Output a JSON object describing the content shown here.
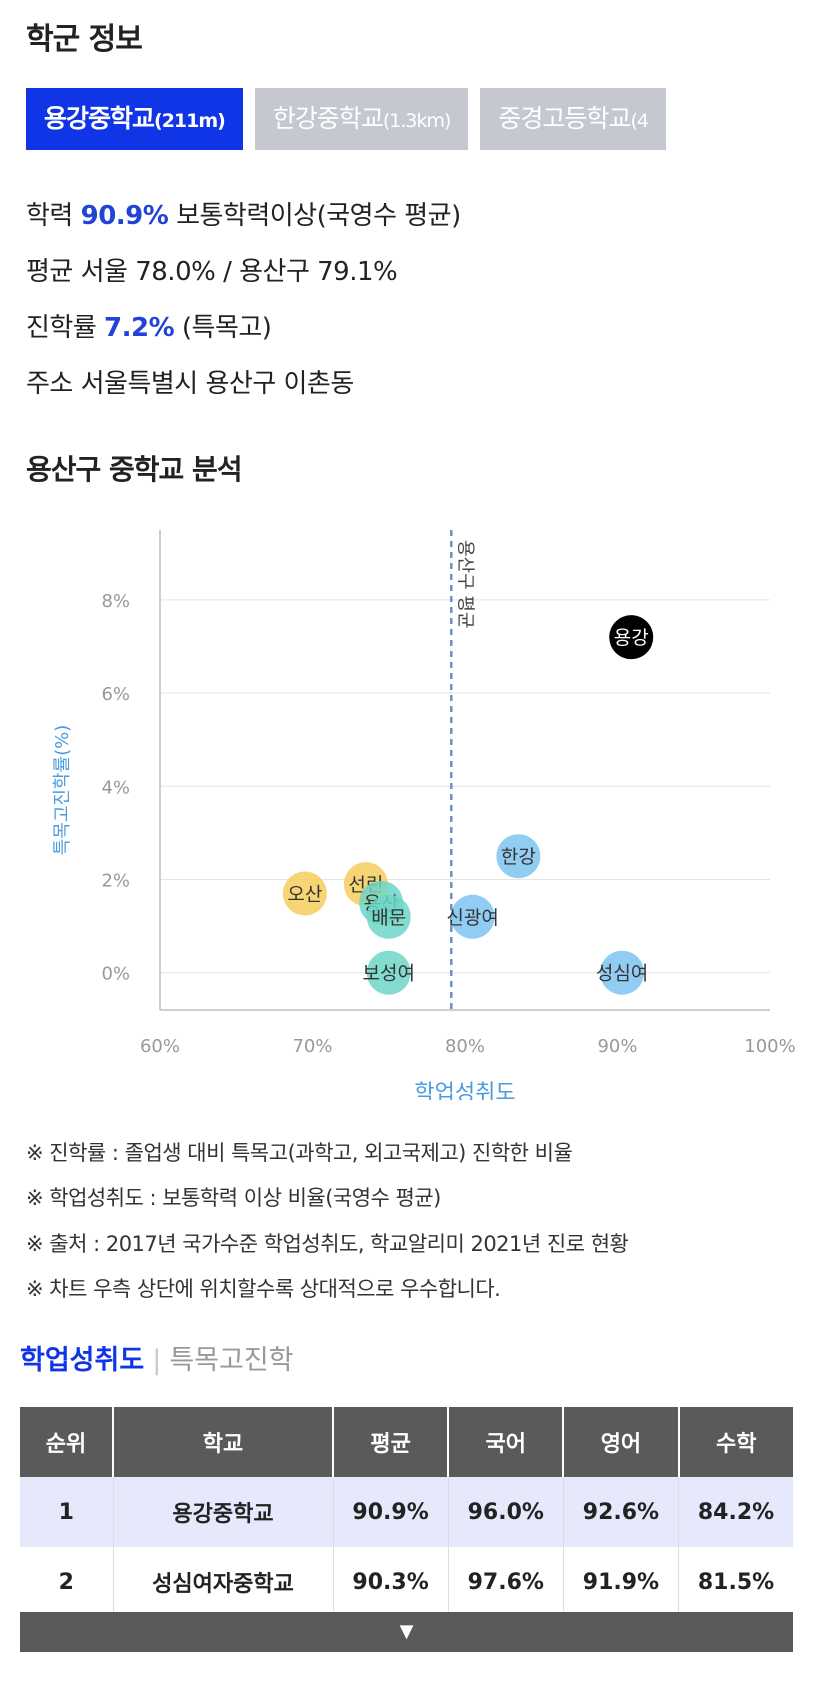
{
  "header": {
    "title": "학군 정보"
  },
  "tabs": [
    {
      "name": "용강중학교",
      "dist": "(211m)"
    },
    {
      "name": "한강중학교",
      "dist": "(1.3km)"
    },
    {
      "name": "중경고등학교",
      "dist": "(4"
    }
  ],
  "info": {
    "academic_label": "학력",
    "academic_value": "90.9%",
    "academic_desc": "보통학력이상(국영수 평균)",
    "avg_label": "평균",
    "avg_value": "서울 78.0% / 용산구 79.1%",
    "adv_label": "진학률",
    "adv_value": "7.2%",
    "adv_desc": "(특목고)",
    "addr_label": "주소",
    "addr_value": "서울특별시 용산구 이촌동"
  },
  "analysis": {
    "title": "용산구 중학교 분석"
  },
  "chart_data": {
    "type": "scatter",
    "xlabel": "학업성취도",
    "ylabel": "특목고진학률(%)",
    "xlim": [
      60,
      100
    ],
    "ylim": [
      -0.8,
      9.5
    ],
    "xticks": [
      "60%",
      "70%",
      "80%",
      "90%",
      "100%"
    ],
    "yticks": [
      "0%",
      "2%",
      "4%",
      "6%",
      "8%"
    ],
    "ref_line": {
      "x": 79.1,
      "label": "용산구 평균"
    },
    "points": [
      {
        "label": "용강",
        "x": 90.9,
        "y": 7.2,
        "color": "#000000"
      },
      {
        "label": "한강",
        "x": 83.5,
        "y": 2.5,
        "color": "#7ec3f0"
      },
      {
        "label": "신광여",
        "x": 80.5,
        "y": 1.2,
        "color": "#7ec3f0"
      },
      {
        "label": "성심여",
        "x": 90.3,
        "y": 0.0,
        "color": "#7ec3f0"
      },
      {
        "label": "오산",
        "x": 69.5,
        "y": 1.7,
        "color": "#f6cc5c"
      },
      {
        "label": "선린",
        "x": 73.5,
        "y": 1.9,
        "color": "#f6cc5c"
      },
      {
        "label": "용산",
        "x": 74.5,
        "y": 1.5,
        "color": "#6ed6c8"
      },
      {
        "label": "배문",
        "x": 75.0,
        "y": 1.2,
        "color": "#6ed6c8"
      },
      {
        "label": "보성여",
        "x": 75.0,
        "y": 0.0,
        "color": "#6ed6c8"
      }
    ]
  },
  "notes": [
    "※ 진학률 : 졸업생 대비 특목고(과학고, 외고국제고) 진학한 비율",
    "※ 학업성취도 : 보통학력 이상 비율(국영수 평균)",
    "※ 출처 : 2017년 국가수준 학업성취도, 학교알리미 2021년 진로 현황",
    "※ 차트 우측 상단에 위치할수록 상대적으로 우수합니다."
  ],
  "rank_tabs": {
    "active": "학업성취도",
    "inactive": "특목고진학"
  },
  "table": {
    "headers": [
      "순위",
      "학교",
      "평균",
      "국어",
      "영어",
      "수학"
    ],
    "rows": [
      [
        "1",
        "용강중학교",
        "90.9%",
        "96.0%",
        "92.6%",
        "84.2%"
      ],
      [
        "2",
        "성심여자중학교",
        "90.3%",
        "97.6%",
        "91.9%",
        "81.5%"
      ]
    ]
  },
  "expand": {
    "icon": "▼"
  },
  "colors": {
    "accent": "#1035e6",
    "axis_label": "#4a9be0"
  }
}
